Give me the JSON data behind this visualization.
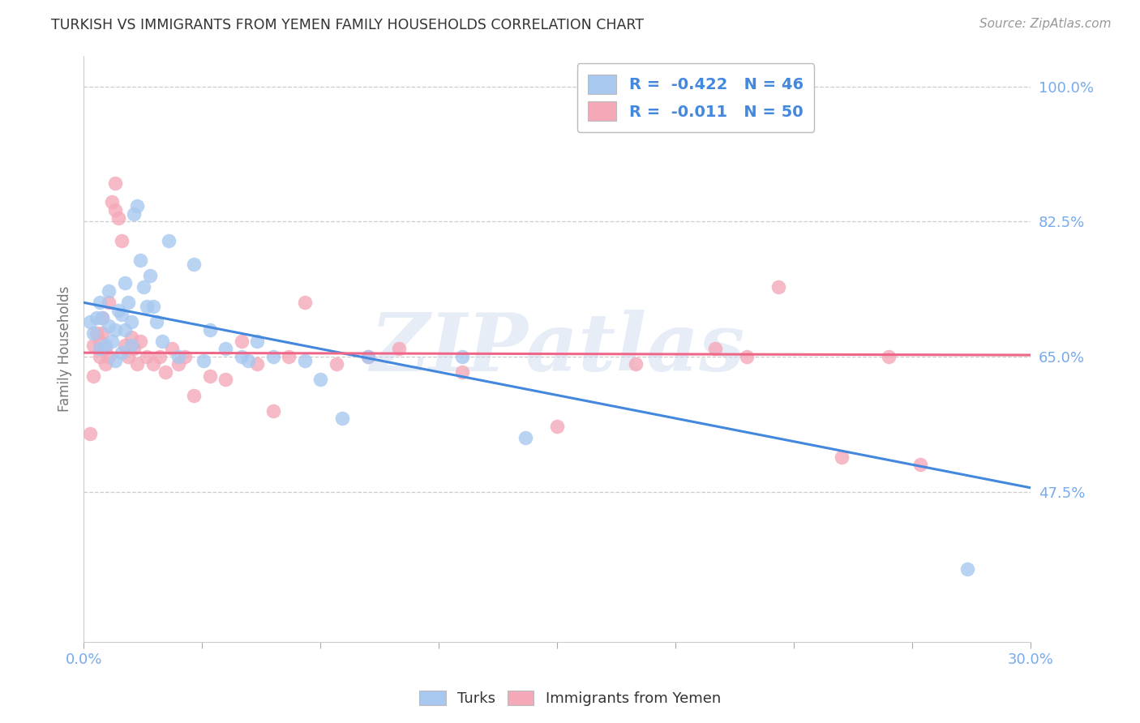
{
  "title": "TURKISH VS IMMIGRANTS FROM YEMEN FAMILY HOUSEHOLDS CORRELATION CHART",
  "source": "Source: ZipAtlas.com",
  "ylabel": "Family Households",
  "xlim": [
    0.0,
    0.3
  ],
  "ylim": [
    0.28,
    1.04
  ],
  "yticks": [
    0.475,
    0.65,
    0.825,
    1.0
  ],
  "ytick_labels": [
    "47.5%",
    "65.0%",
    "82.5%",
    "100.0%"
  ],
  "xticks": [
    0.0,
    0.0375,
    0.075,
    0.1125,
    0.15,
    0.1875,
    0.225,
    0.2625,
    0.3
  ],
  "xtick_labels_show": {
    "0.0": "0.0%",
    "0.30": "30.0%"
  },
  "watermark": "ZIPatlas",
  "blue_color": "#A8C8F0",
  "pink_color": "#F4A8B8",
  "blue_trend_color": "#4488DD",
  "pink_trend_color": "#EE6688",
  "turks_x": [
    0.002,
    0.003,
    0.004,
    0.005,
    0.005,
    0.006,
    0.007,
    0.008,
    0.008,
    0.009,
    0.01,
    0.01,
    0.011,
    0.012,
    0.012,
    0.013,
    0.013,
    0.014,
    0.015,
    0.015,
    0.016,
    0.017,
    0.018,
    0.019,
    0.02,
    0.021,
    0.022,
    0.023,
    0.025,
    0.027,
    0.03,
    0.035,
    0.038,
    0.04,
    0.045,
    0.05,
    0.052,
    0.055,
    0.06,
    0.07,
    0.075,
    0.082,
    0.09,
    0.12,
    0.14,
    0.28
  ],
  "turks_y": [
    0.695,
    0.68,
    0.7,
    0.72,
    0.66,
    0.7,
    0.665,
    0.69,
    0.735,
    0.67,
    0.645,
    0.685,
    0.71,
    0.655,
    0.705,
    0.685,
    0.745,
    0.72,
    0.695,
    0.665,
    0.835,
    0.845,
    0.775,
    0.74,
    0.715,
    0.755,
    0.715,
    0.695,
    0.67,
    0.8,
    0.65,
    0.77,
    0.645,
    0.685,
    0.66,
    0.65,
    0.645,
    0.67,
    0.65,
    0.645,
    0.62,
    0.57,
    0.65,
    0.65,
    0.545,
    0.375
  ],
  "yemen_x": [
    0.002,
    0.003,
    0.003,
    0.004,
    0.005,
    0.005,
    0.006,
    0.006,
    0.007,
    0.007,
    0.008,
    0.008,
    0.009,
    0.01,
    0.01,
    0.011,
    0.012,
    0.013,
    0.014,
    0.015,
    0.016,
    0.017,
    0.018,
    0.02,
    0.022,
    0.024,
    0.026,
    0.028,
    0.03,
    0.032,
    0.035,
    0.04,
    0.045,
    0.05,
    0.055,
    0.06,
    0.065,
    0.07,
    0.08,
    0.09,
    0.1,
    0.12,
    0.15,
    0.175,
    0.2,
    0.21,
    0.22,
    0.24,
    0.255,
    0.265
  ],
  "yemen_y": [
    0.55,
    0.625,
    0.665,
    0.68,
    0.65,
    0.67,
    0.7,
    0.68,
    0.64,
    0.66,
    0.65,
    0.72,
    0.85,
    0.875,
    0.84,
    0.83,
    0.8,
    0.665,
    0.65,
    0.675,
    0.66,
    0.64,
    0.67,
    0.65,
    0.64,
    0.65,
    0.63,
    0.66,
    0.64,
    0.65,
    0.6,
    0.625,
    0.62,
    0.67,
    0.64,
    0.58,
    0.65,
    0.72,
    0.64,
    0.65,
    0.66,
    0.63,
    0.56,
    0.64,
    0.66,
    0.65,
    0.74,
    0.52,
    0.65,
    0.51
  ],
  "blue_trendline_x": [
    0.0,
    0.3
  ],
  "blue_trendline_y": [
    0.72,
    0.48
  ],
  "pink_trendline_x": [
    0.0,
    0.3
  ],
  "pink_trendline_y": [
    0.655,
    0.652
  ],
  "grid_color": "#CCCCCC",
  "title_color": "#333333",
  "axis_tick_color": "#77AAEE",
  "ylabel_color": "#777777",
  "bg_color": "#FFFFFF",
  "legend_text_color": "#4488DD",
  "bottom_legend_color": "#333333"
}
